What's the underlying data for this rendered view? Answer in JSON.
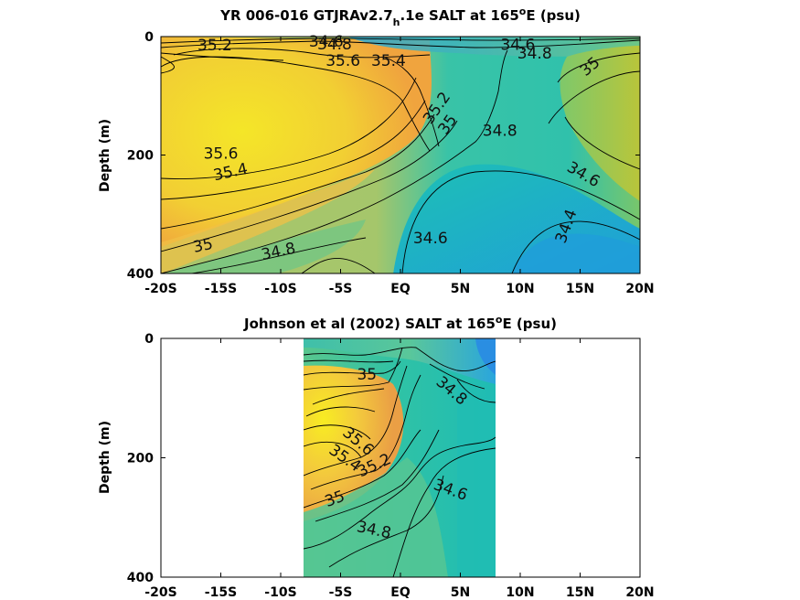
{
  "figure": {
    "background": "#ffffff"
  },
  "chart_data": [
    {
      "type": "heatmap",
      "title": "YR 006-016 GTJRAv2.7",
      "title_subscript": "h",
      "title_rest": ".1e SALT at 165",
      "title_superscript": "o",
      "title_end": "E (psu)",
      "ylabel": "Depth (m)",
      "xlabel": "",
      "xlim": [
        -20,
        20
      ],
      "ylim": [
        400,
        0
      ],
      "x_ticks": [
        -20,
        -15,
        -10,
        -5,
        0,
        5,
        10,
        15,
        20
      ],
      "x_tick_labels": [
        "-20S",
        "-15S",
        "-10S",
        "-5S",
        "EQ",
        "5N",
        "10N",
        "15N",
        "20N"
      ],
      "y_ticks": [
        0,
        200,
        400
      ],
      "y_tick_labels": [
        "0",
        "200",
        "400"
      ],
      "colors": {
        "low": "#1e9bdc",
        "mid": "#1fc0b0",
        "high": "#f5d82a",
        "max": "#f7a540"
      },
      "contour_labels": [
        {
          "text": "35.2",
          "lon": -15.5,
          "depth": 14,
          "angle": 0
        },
        {
          "text": "34.6",
          "lon": -6.2,
          "depth": 8,
          "angle": 0
        },
        {
          "text": "34.8",
          "lon": -5.5,
          "depth": 12,
          "angle": 0
        },
        {
          "text": "35.6",
          "lon": -4.8,
          "depth": 40,
          "angle": 0
        },
        {
          "text": "35.4",
          "lon": -1.0,
          "depth": 40,
          "angle": 0
        },
        {
          "text": "34.6",
          "lon": 9.8,
          "depth": 13,
          "angle": 0
        },
        {
          "text": "34.8",
          "lon": 11.2,
          "depth": 28,
          "angle": 0
        },
        {
          "text": "35",
          "lon": 15.8,
          "depth": 50,
          "angle": -40
        },
        {
          "text": "35.2",
          "lon": 3.0,
          "depth": 120,
          "angle": -55
        },
        {
          "text": "35",
          "lon": 3.9,
          "depth": 148,
          "angle": -55
        },
        {
          "text": "34.8",
          "lon": 8.3,
          "depth": 158,
          "angle": 0
        },
        {
          "text": "35.6",
          "lon": -15.0,
          "depth": 197,
          "angle": 0
        },
        {
          "text": "35.4",
          "lon": -14.2,
          "depth": 228,
          "angle": -12
        },
        {
          "text": "34.6",
          "lon": 15.3,
          "depth": 232,
          "angle": 30
        },
        {
          "text": "34.4",
          "lon": 13.8,
          "depth": 320,
          "angle": -70
        },
        {
          "text": "35",
          "lon": -16.5,
          "depth": 352,
          "angle": -12
        },
        {
          "text": "34.8",
          "lon": -10.2,
          "depth": 362,
          "angle": -12
        },
        {
          "text": "34.6",
          "lon": 2.5,
          "depth": 340,
          "angle": 0
        }
      ]
    },
    {
      "type": "heatmap",
      "title": "Johnson et al (2002) SALT at 165",
      "title_superscript": "o",
      "title_end": "E (psu)",
      "ylabel": "Depth (m)",
      "xlabel": "",
      "xlim": [
        -20,
        20
      ],
      "ylim": [
        400,
        0
      ],
      "data_extent_lon": [
        -8,
        8
      ],
      "x_ticks": [
        -20,
        -15,
        -10,
        -5,
        0,
        5,
        10,
        15,
        20
      ],
      "x_tick_labels": [
        "-20S",
        "-15S",
        "-10S",
        "-5S",
        "EQ",
        "5N",
        "10N",
        "15N",
        "20N"
      ],
      "y_ticks": [
        0,
        200,
        400
      ],
      "y_tick_labels": [
        "0",
        "200",
        "400"
      ],
      "colors": {
        "low": "#2ea0e0",
        "mid": "#1fc0b0",
        "high": "#f5d82a",
        "max": "#f7a540"
      },
      "contour_labels": [
        {
          "text": "35",
          "lon": -2.8,
          "depth": 60,
          "angle": 0
        },
        {
          "text": "34.8",
          "lon": 4.3,
          "depth": 87,
          "angle": 40
        },
        {
          "text": "35.6",
          "lon": -3.5,
          "depth": 172,
          "angle": 40
        },
        {
          "text": "35.4",
          "lon": -4.6,
          "depth": 200,
          "angle": 35
        },
        {
          "text": "35.2",
          "lon": -2.2,
          "depth": 212,
          "angle": -25
        },
        {
          "text": "34.6",
          "lon": 4.2,
          "depth": 253,
          "angle": 20
        },
        {
          "text": "35",
          "lon": -5.5,
          "depth": 268,
          "angle": -20
        },
        {
          "text": "34.8",
          "lon": -2.2,
          "depth": 320,
          "angle": 12
        }
      ]
    }
  ]
}
